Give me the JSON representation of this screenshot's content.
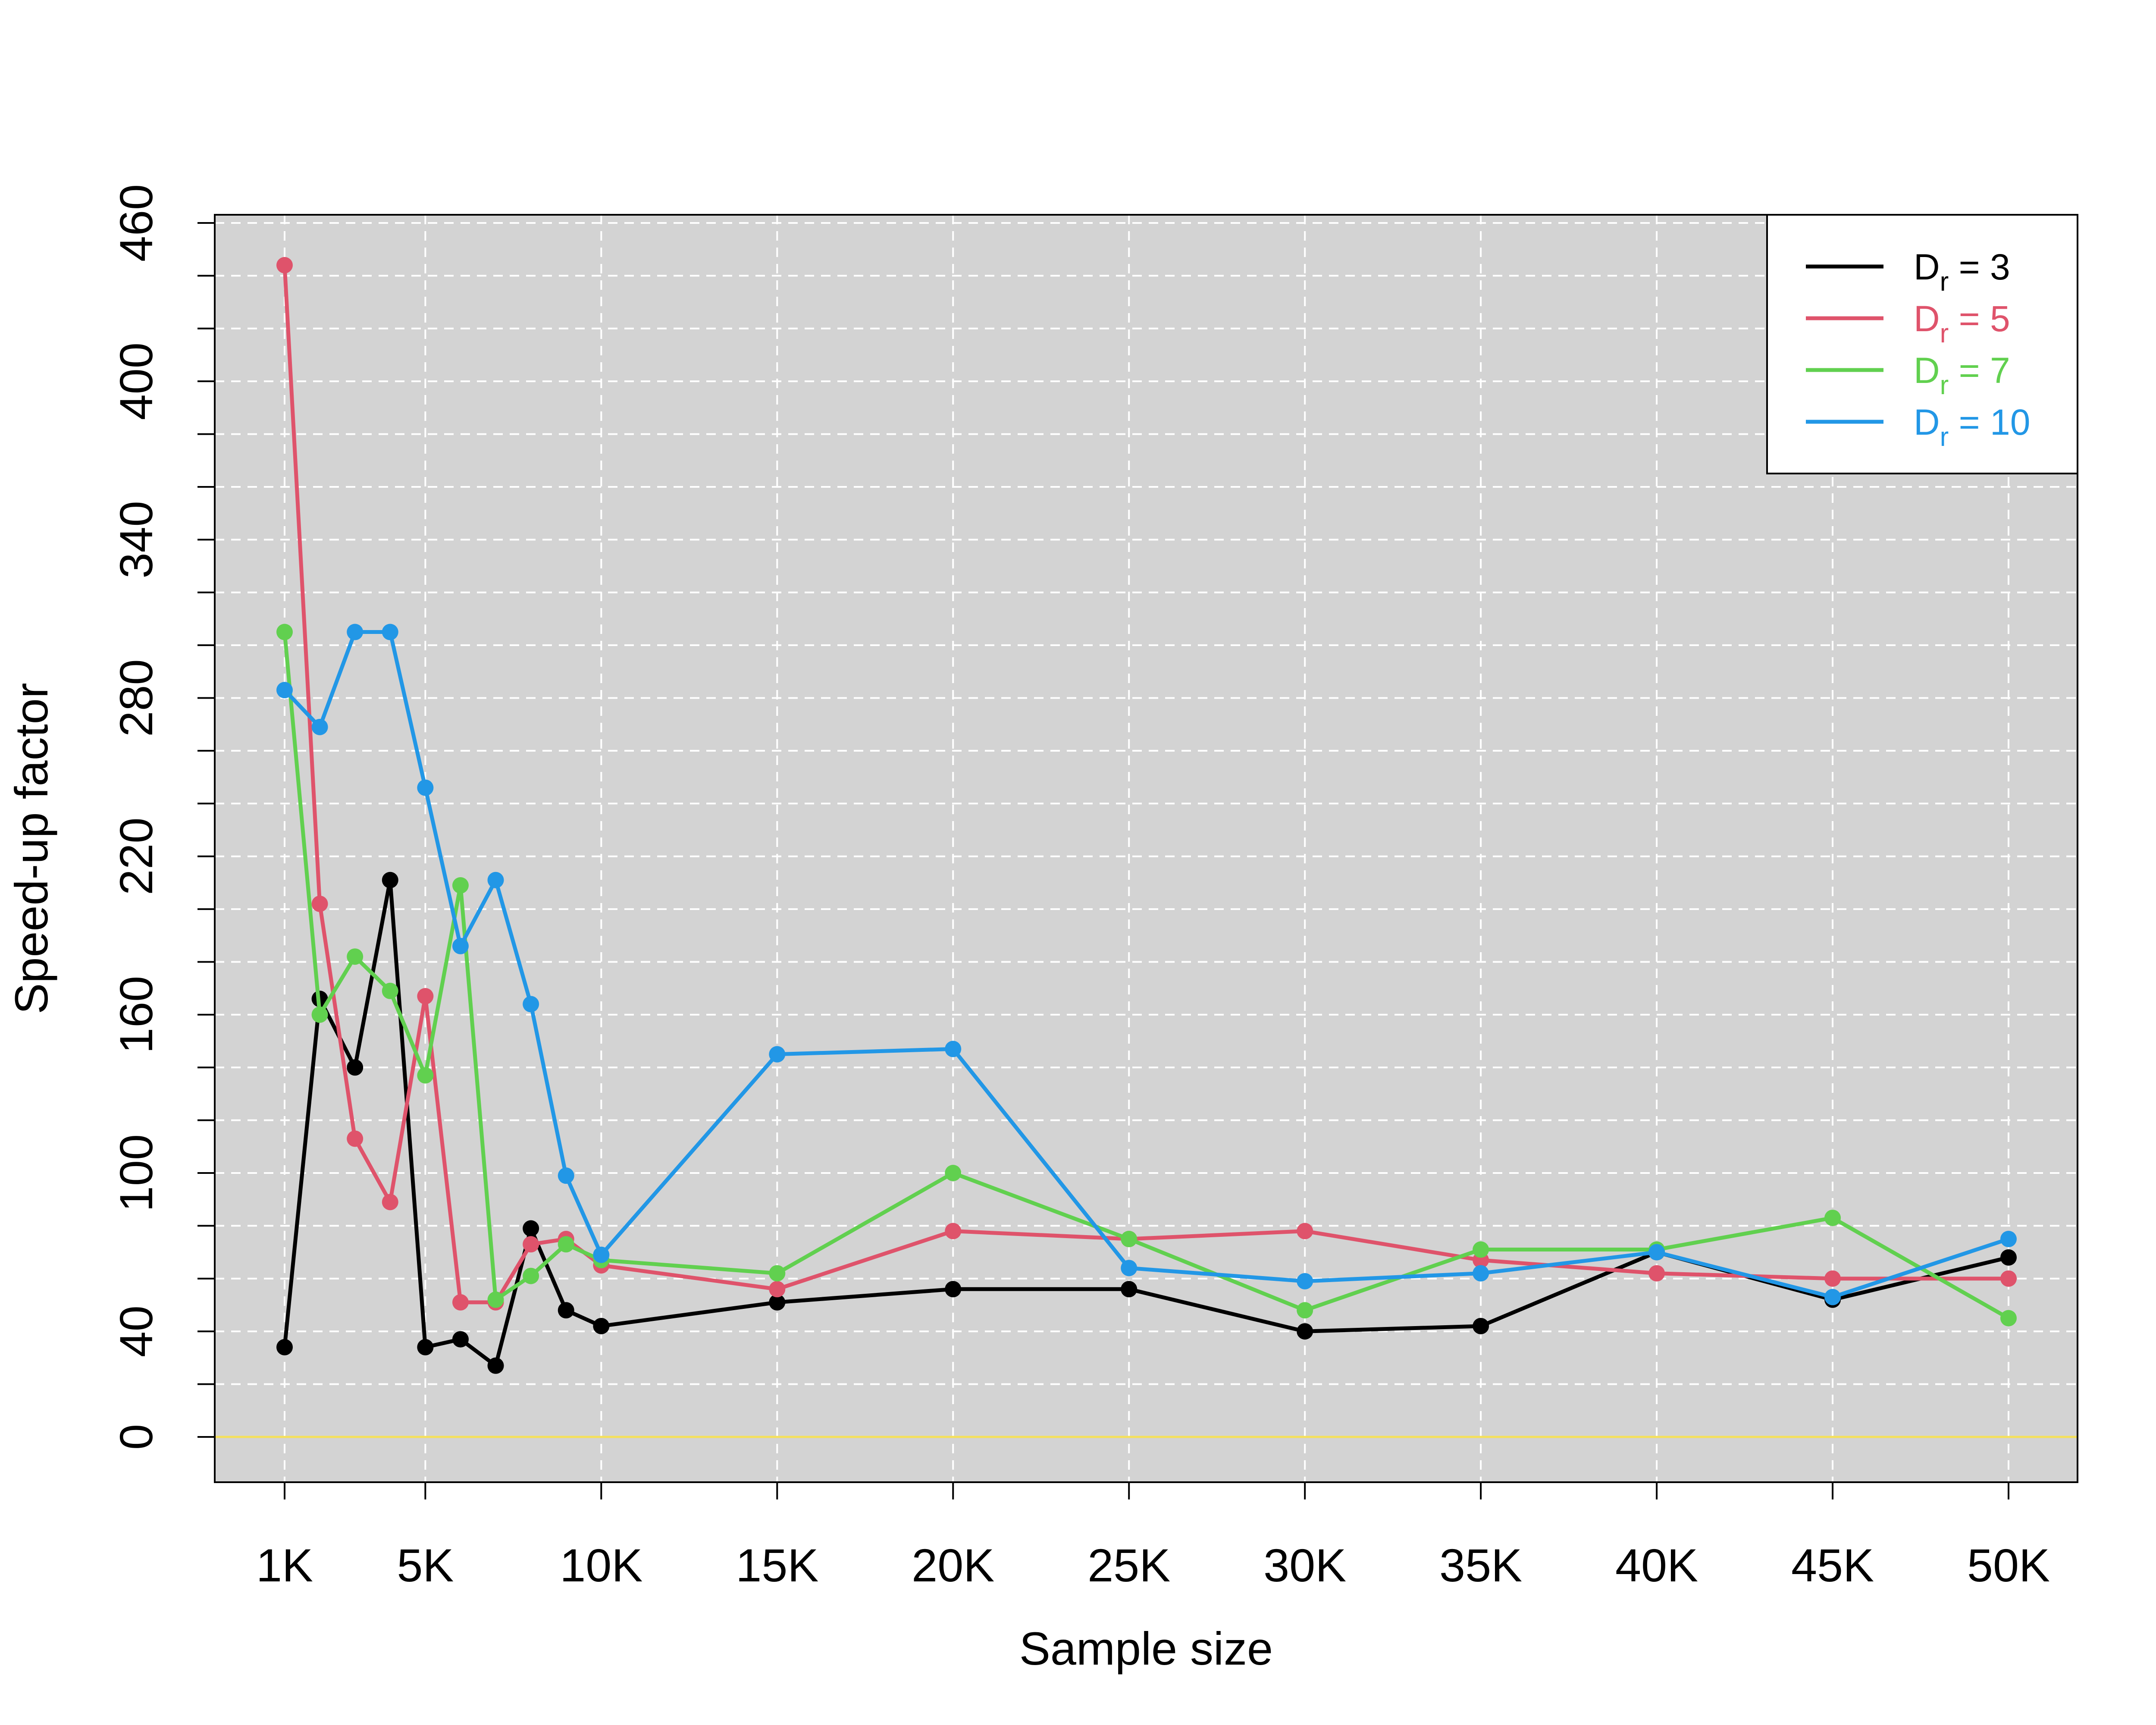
{
  "chart_data": {
    "type": "line",
    "xlabel": "Sample size",
    "ylabel": "Speed-up factor",
    "x": [
      1000,
      2000,
      3000,
      4000,
      5000,
      6000,
      7000,
      8000,
      9000,
      10000,
      15000,
      20000,
      25000,
      30000,
      35000,
      40000,
      45000,
      50000
    ],
    "xlim": [
      1000,
      50000
    ],
    "ylim": [
      0,
      460
    ],
    "xticks": [
      1000,
      5000,
      10000,
      15000,
      20000,
      25000,
      30000,
      35000,
      40000,
      45000,
      50000
    ],
    "xtick_labels": [
      "1K",
      "5K",
      "10K",
      "15K",
      "20K",
      "25K",
      "30K",
      "35K",
      "40K",
      "45K",
      "50K"
    ],
    "yticks": [
      0,
      40,
      100,
      160,
      220,
      280,
      340,
      400,
      460
    ],
    "ytick_labels": [
      "0",
      "40",
      "100",
      "160",
      "220",
      "280",
      "340",
      "400",
      "460"
    ],
    "grid": true,
    "background": "#d3d3d3",
    "legend_position": "top-right",
    "reference_line": {
      "y": 0,
      "color": "#f5e05a"
    },
    "series": [
      {
        "name": "D_r = 3",
        "legend_main": "D",
        "legend_sub": "r",
        "legend_rest": " = 3",
        "color": "#000000",
        "values": [
          34,
          166,
          140,
          211,
          34,
          37,
          27,
          79,
          48,
          42,
          51,
          56,
          56,
          40,
          42,
          70,
          52,
          68
        ]
      },
      {
        "name": "D_r = 5",
        "legend_main": "D",
        "legend_sub": "r",
        "legend_rest": " = 5",
        "color": "#df536b",
        "values": [
          444,
          202,
          113,
          89,
          167,
          51,
          51,
          73,
          75,
          65,
          56,
          78,
          75,
          78,
          67,
          62,
          60,
          60
        ]
      },
      {
        "name": "D_r = 7",
        "legend_main": "D",
        "legend_sub": "r",
        "legend_rest": " = 7",
        "color": "#61d04f",
        "values": [
          305,
          160,
          182,
          169,
          137,
          209,
          52,
          61,
          73,
          67,
          62,
          100,
          75,
          48,
          71,
          71,
          83,
          45
        ]
      },
      {
        "name": "D_r = 10",
        "legend_main": "D",
        "legend_sub": "r",
        "legend_rest": " = 10",
        "color": "#2297e6",
        "values": [
          283,
          269,
          305,
          305,
          246,
          186,
          211,
          164,
          99,
          69,
          145,
          147,
          64,
          59,
          62,
          70,
          53,
          75
        ]
      }
    ]
  }
}
